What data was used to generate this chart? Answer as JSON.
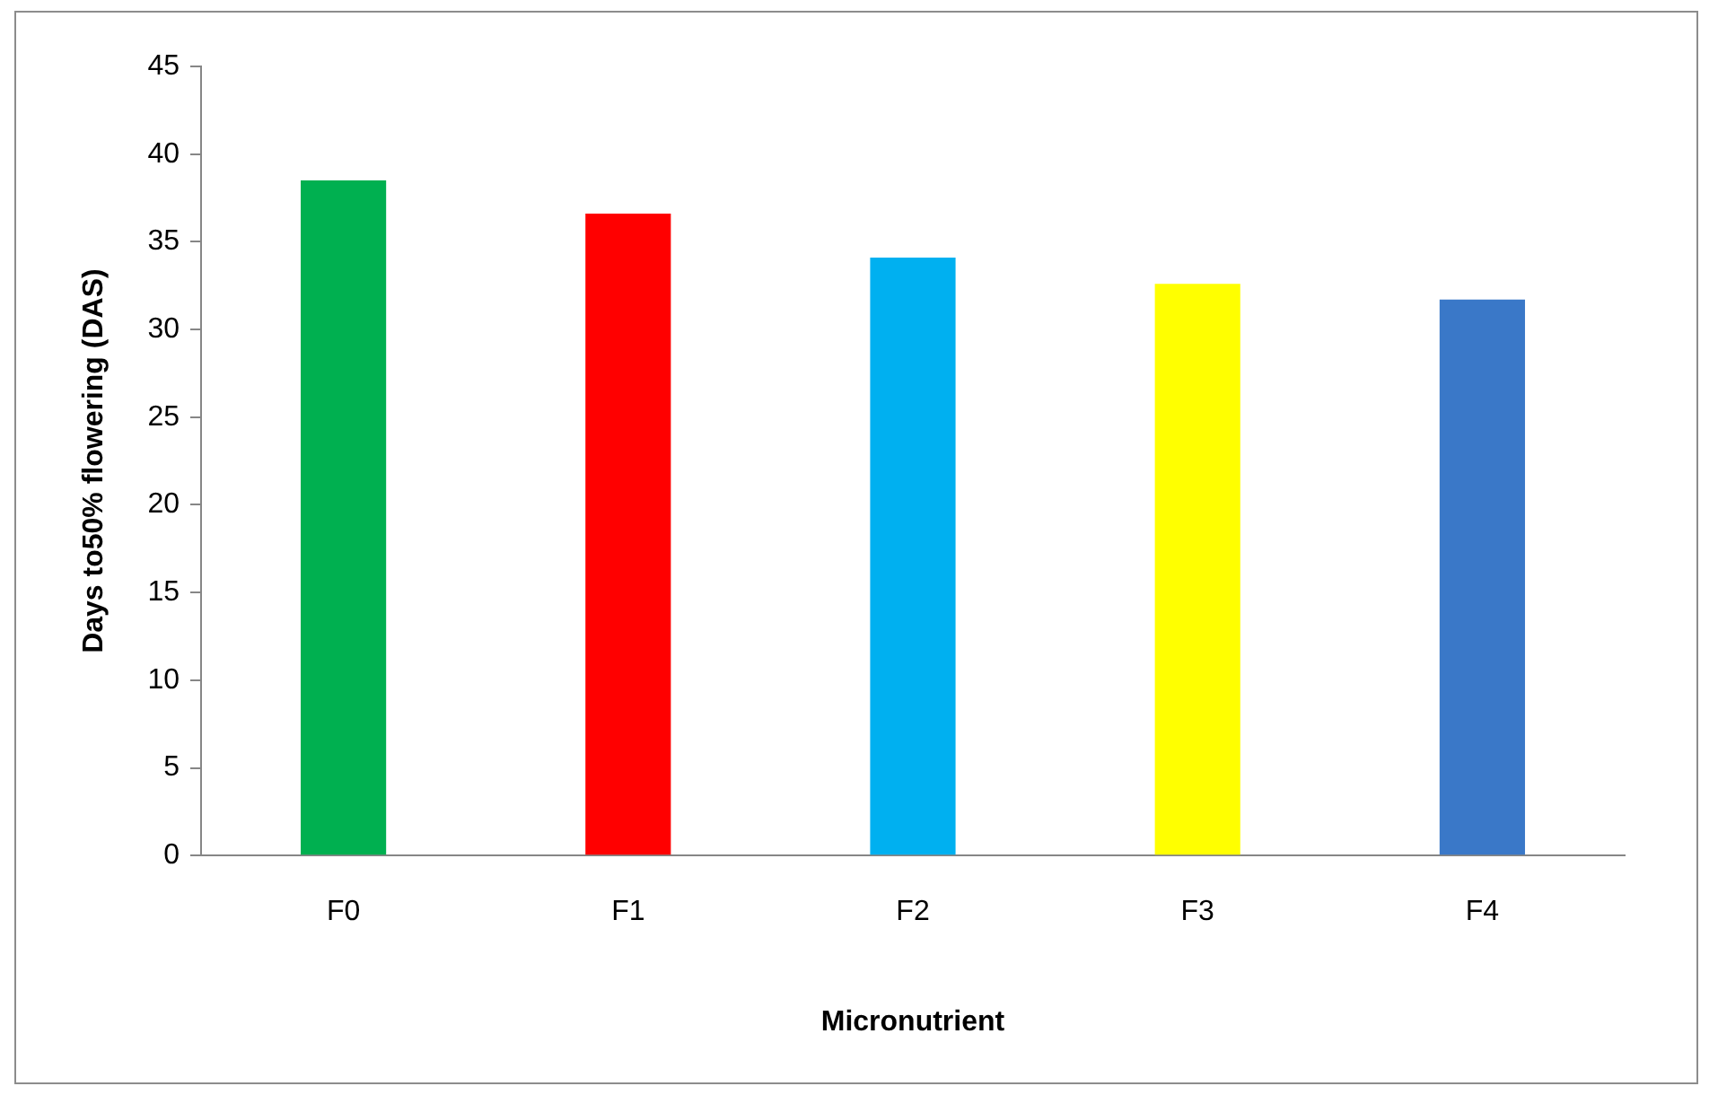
{
  "chart_data": {
    "type": "bar",
    "xlabel": "Micronutrient",
    "ylabel": "Days to50% flowering (DAS)",
    "categories": [
      "F0",
      "F1",
      "F2",
      "F3",
      "F4"
    ],
    "values": [
      38.5,
      36.6,
      34.1,
      32.6,
      31.7
    ],
    "colors": [
      "#00b050",
      "#ff0000",
      "#00b0f0",
      "#ffff00",
      "#3a78c8"
    ],
    "ylim": [
      0,
      45
    ],
    "yticks": [
      0,
      5,
      10,
      15,
      20,
      25,
      30,
      35,
      40,
      45
    ],
    "grid": false,
    "legend": false
  }
}
